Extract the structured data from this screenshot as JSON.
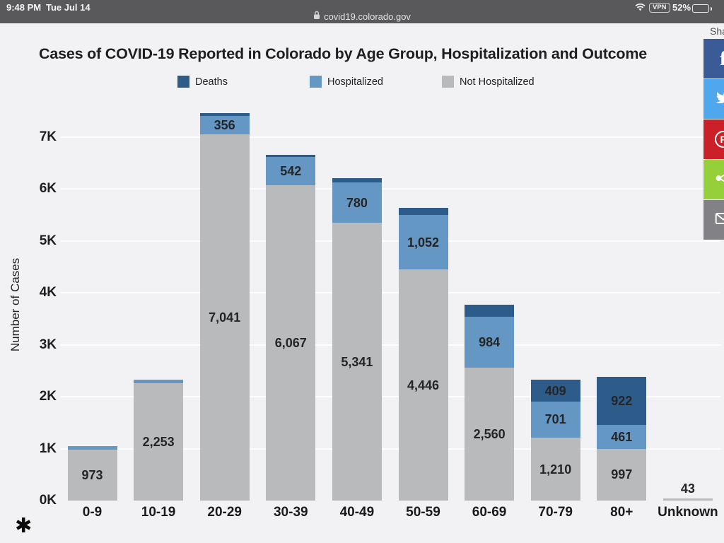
{
  "status_bar": {
    "time": "9:48 PM",
    "date": "Tue Jul 14",
    "wifi_icon": "wifi-icon",
    "vpn_label": "VPN",
    "battery_percent": "52%",
    "battery_fill_percent": 52,
    "battery_icon": "battery-icon"
  },
  "browser_bar": {
    "lock_icon": "lock-icon",
    "url": "covid19.colorado.gov"
  },
  "share_panel": {
    "visible_label": "Sha",
    "buttons": [
      {
        "name": "facebook",
        "icon": "facebook-f-icon",
        "color": "#3a5a98"
      },
      {
        "name": "twitter",
        "icon": "twitter-bird-icon",
        "color": "#4fa8ee"
      },
      {
        "name": "pinterest",
        "icon": "pinterest-p-icon",
        "color": "#cb2027"
      },
      {
        "name": "share",
        "icon": "share-nodes-icon",
        "color": "#95d03a"
      },
      {
        "name": "email",
        "icon": "envelope-icon",
        "color": "#828286"
      }
    ]
  },
  "footnote": {
    "marker": "✱"
  },
  "chart_data": {
    "type": "bar",
    "stacked": true,
    "title": "Cases of COVID-19 Reported in Colorado by Age Group, Hospitalization and Outcome",
    "ylabel": "Number of Cases",
    "xlabel": "",
    "categories": [
      "0-9",
      "10-19",
      "20-29",
      "30-39",
      "40-49",
      "50-59",
      "60-69",
      "70-79",
      "80+",
      "Unknown"
    ],
    "series": [
      {
        "name": "Not Hospitalized",
        "color": "#b8babb",
        "values": [
          973,
          2253,
          7041,
          6067,
          5341,
          4446,
          2560,
          1210,
          997,
          43
        ],
        "labels": [
          "973",
          "2,253",
          "7,041",
          "6,067",
          "5,341",
          "4,446",
          "2,560",
          "1,210",
          "997",
          "43"
        ]
      },
      {
        "name": "Hospitalized",
        "color": "#6597c4",
        "values": [
          70,
          75,
          356,
          542,
          780,
          1052,
          984,
          701,
          461,
          0
        ],
        "labels": [
          null,
          null,
          "356",
          "542",
          "780",
          "1,052",
          "984",
          "701",
          "461",
          null
        ]
      },
      {
        "name": "Deaths",
        "color": "#2e5c8a",
        "values": [
          0,
          0,
          55,
          50,
          80,
          130,
          230,
          409,
          922,
          0
        ],
        "labels": [
          null,
          null,
          null,
          null,
          null,
          null,
          null,
          "409",
          "922",
          null
        ]
      }
    ],
    "legend": [
      {
        "label": "Deaths",
        "color": "#2e5c8a"
      },
      {
        "label": "Hospitalized",
        "color": "#6597c4"
      },
      {
        "label": "Not Hospitalized",
        "color": "#b8babb"
      }
    ],
    "legend_position": "top",
    "yticks": [
      "0K",
      "1K",
      "2K",
      "3K",
      "4K",
      "5K",
      "6K",
      "7K"
    ],
    "ylim": [
      0,
      7600
    ],
    "grid": true,
    "note": "unlabeled thin segments estimated from pixel heights"
  }
}
